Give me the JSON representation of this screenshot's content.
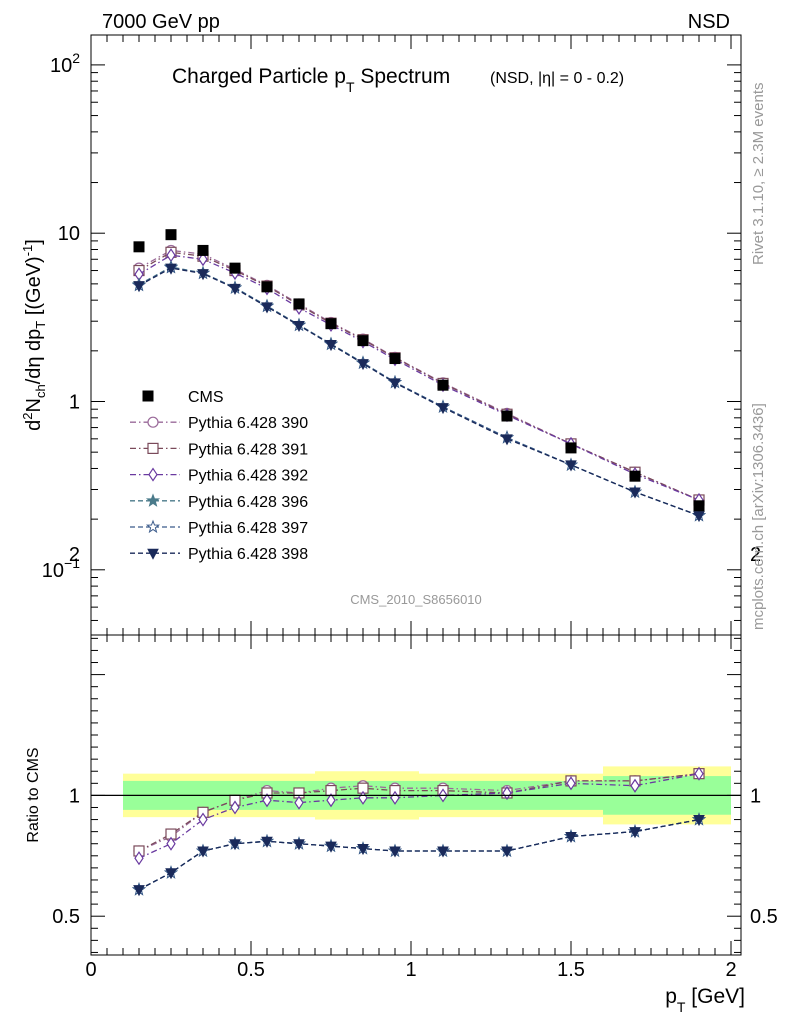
{
  "header": {
    "left": "7000 GeV pp",
    "right": "NSD"
  },
  "side_text": {
    "top": "Rivet 3.1.10, ≥ 2.3M events",
    "bottom": "mcplots.cern.ch [arXiv:1306.3436]"
  },
  "chart_data": {
    "type": "line",
    "title_main": "Charged Particle p",
    "title_main_sub": "T",
    "title_main_tail": " Spectrum",
    "title_extra": "(NSD, |η| =    0 - 0.2)",
    "analysis_label": "CMS_2010_S8656010",
    "ylabel_top": "d²N_ch/dη dp_T [(GeV)^-1]",
    "ylabel_ratio": "Ratio to CMS",
    "xlabel": "p_T [GeV]",
    "xlim": [
      0,
      2
    ],
    "ylim_top": [
      0.04,
      160
    ],
    "ylim_ratio": [
      0.35,
      2.3
    ],
    "yscale_top": "log",
    "x_ticks": [
      "0",
      "0.5",
      "1",
      "1.5",
      "2"
    ],
    "y_ticks_top": [
      "10^-1",
      "1",
      "10",
      "10^2"
    ],
    "y_ticks_ratio": [
      "0.5",
      "1",
      "2"
    ],
    "legend_position": "bottom-left",
    "x": [
      0.15,
      0.25,
      0.35,
      0.45,
      0.55,
      0.65,
      0.75,
      0.85,
      0.95,
      1.1,
      1.3,
      1.5,
      1.7,
      1.9
    ],
    "data": {
      "name": "CMS",
      "values": [
        8.3,
        9.8,
        7.9,
        6.2,
        4.8,
        3.8,
        2.9,
        2.3,
        1.8,
        1.25,
        0.82,
        0.53,
        0.36,
        0.24
      ],
      "band_inner": [
        0.06,
        0.06,
        0.06,
        0.06,
        0.06,
        0.06,
        0.06,
        0.06,
        0.06,
        0.06,
        0.06,
        0.06,
        0.08,
        0.08
      ],
      "band_outer": [
        0.09,
        0.09,
        0.09,
        0.09,
        0.09,
        0.09,
        0.1,
        0.1,
        0.1,
        0.09,
        0.09,
        0.09,
        0.12,
        0.12
      ]
    },
    "series": [
      {
        "name": "Pythia 6.428 390",
        "color": "#9a6a9a",
        "marker": "circle-open",
        "dash": "dashdot",
        "values": [
          6.2,
          7.9,
          7.5,
          6.1,
          4.9,
          3.8,
          2.95,
          2.35,
          1.83,
          1.29,
          0.85,
          0.56,
          0.38,
          0.26
        ],
        "ratio": [
          0.77,
          0.83,
          0.93,
          0.98,
          1.02,
          1.01,
          1.03,
          1.04,
          1.03,
          1.03,
          1.02,
          1.06,
          1.06,
          1.09
        ]
      },
      {
        "name": "Pythia 6.428 391",
        "color": "#7a4a5a",
        "marker": "square-open",
        "dash": "dashdot",
        "values": [
          6.0,
          7.7,
          7.3,
          6.0,
          4.85,
          3.75,
          2.92,
          2.33,
          1.82,
          1.28,
          0.84,
          0.56,
          0.38,
          0.26
        ],
        "ratio": [
          0.77,
          0.84,
          0.93,
          0.98,
          1.01,
          1.01,
          1.02,
          1.03,
          1.02,
          1.02,
          1.01,
          1.06,
          1.06,
          1.09
        ]
      },
      {
        "name": "Pythia 6.428 392",
        "color": "#6a3aa0",
        "marker": "diamond-open",
        "dash": "dashdot",
        "values": [
          5.7,
          7.4,
          7.0,
          5.8,
          4.7,
          3.6,
          2.85,
          2.27,
          1.78,
          1.25,
          0.83,
          0.56,
          0.37,
          0.26
        ],
        "ratio": [
          0.74,
          0.8,
          0.9,
          0.95,
          0.98,
          0.97,
          0.98,
          0.99,
          0.99,
          1.0,
          1.01,
          1.05,
          1.04,
          1.09
        ]
      },
      {
        "name": "Pythia 6.428 396",
        "color": "#4a7a8a",
        "marker": "star-filled",
        "dash": "dashed",
        "values": [
          4.95,
          6.3,
          5.8,
          4.75,
          3.7,
          2.85,
          2.2,
          1.7,
          1.3,
          0.93,
          0.61,
          0.42,
          0.29,
          0.21
        ],
        "ratio": [
          0.61,
          0.68,
          0.77,
          0.8,
          0.81,
          0.8,
          0.79,
          0.78,
          0.77,
          0.77,
          0.77,
          0.83,
          0.85,
          0.9
        ]
      },
      {
        "name": "Pythia 6.428 397",
        "color": "#3a5a8a",
        "marker": "star-open",
        "dash": "dashed",
        "values": [
          4.9,
          6.25,
          5.78,
          4.73,
          3.68,
          2.84,
          2.19,
          1.69,
          1.3,
          0.93,
          0.61,
          0.42,
          0.29,
          0.21
        ],
        "ratio": [
          0.61,
          0.68,
          0.77,
          0.8,
          0.81,
          0.8,
          0.79,
          0.78,
          0.77,
          0.77,
          0.77,
          0.83,
          0.85,
          0.9
        ]
      },
      {
        "name": "Pythia 6.428 398",
        "color": "#1a2a5a",
        "marker": "triangle-down-filled",
        "dash": "dashed",
        "values": [
          4.88,
          6.2,
          5.75,
          4.7,
          3.65,
          2.83,
          2.18,
          1.68,
          1.29,
          0.92,
          0.6,
          0.42,
          0.29,
          0.21
        ],
        "ratio": [
          0.61,
          0.68,
          0.77,
          0.8,
          0.81,
          0.8,
          0.79,
          0.78,
          0.77,
          0.77,
          0.77,
          0.83,
          0.85,
          0.9
        ]
      }
    ]
  }
}
